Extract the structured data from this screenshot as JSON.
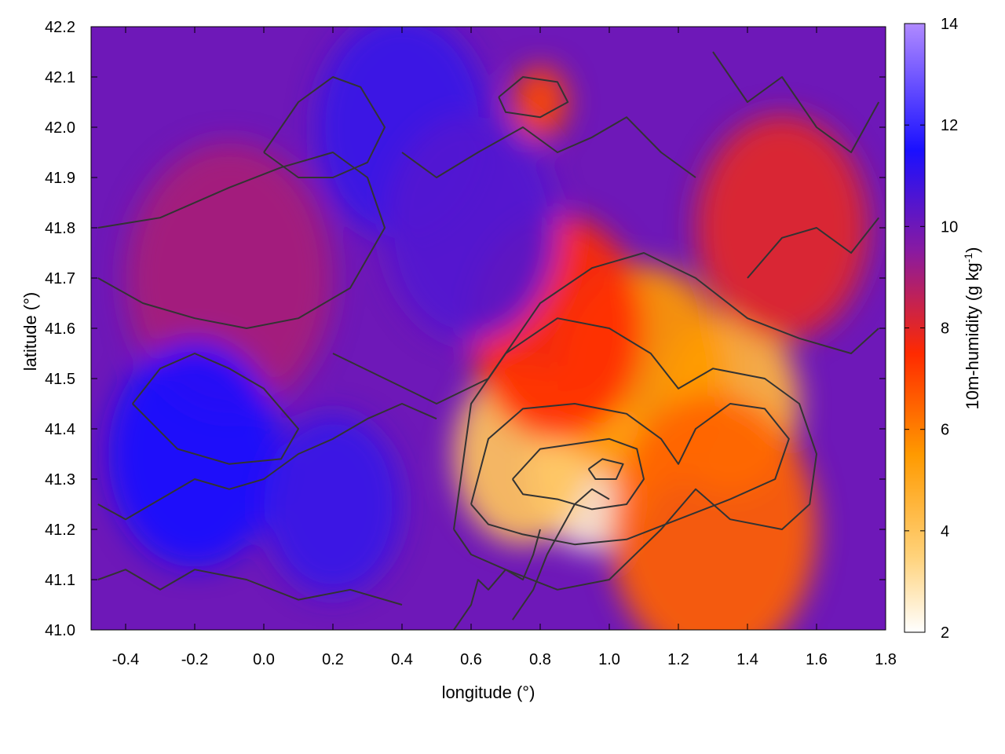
{
  "chart_data": {
    "type": "heatmap",
    "title": "",
    "xlabel": "longitude (°)",
    "ylabel": "latitude (°)",
    "xlim": [
      -0.5,
      1.8
    ],
    "ylim": [
      41.0,
      42.2
    ],
    "xticks": [
      -0.4,
      -0.2,
      0.0,
      0.2,
      0.4,
      0.6,
      0.8,
      1.0,
      1.2,
      1.4,
      1.6,
      1.8
    ],
    "xtick_labels": [
      "-0.4",
      "-0.2",
      "0.0",
      "0.2",
      "0.4",
      "0.6",
      "0.8",
      "1.0",
      "1.2",
      "1.4",
      "1.6",
      "1.8"
    ],
    "yticks": [
      41.0,
      41.1,
      41.2,
      41.3,
      41.4,
      41.5,
      41.6,
      41.7,
      41.8,
      41.9,
      42.0,
      42.1,
      42.2
    ],
    "ytick_labels": [
      "41.0",
      "41.1",
      "41.2",
      "41.3",
      "41.4",
      "41.5",
      "41.6",
      "41.7",
      "41.8",
      "41.9",
      "42.0",
      "42.1",
      "42.2"
    ],
    "colorbar": {
      "label_main": "10m-humidity (g kg",
      "label_sup": "-1",
      "label_close": ")",
      "range": [
        2,
        14
      ],
      "ticks": [
        2,
        4,
        6,
        8,
        10,
        12,
        14
      ],
      "tick_labels": [
        "2",
        "4",
        "6",
        "8",
        "10",
        "12",
        "14"
      ],
      "colors": [
        {
          "value": 2,
          "color": "#ffffff"
        },
        {
          "value": 3.5,
          "color": "#ffd27a"
        },
        {
          "value": 5.5,
          "color": "#ff9a00"
        },
        {
          "value": 7.5,
          "color": "#ff2a00"
        },
        {
          "value": 9.5,
          "color": "#8a1aa0"
        },
        {
          "value": 11.5,
          "color": "#1a10ff"
        },
        {
          "value": 14,
          "color": "#b08aff"
        }
      ]
    },
    "humidity_features": [
      {
        "lon": 0.95,
        "lat": 41.32,
        "value": 2.5,
        "spread": 0.18
      },
      {
        "lon": 0.75,
        "lat": 41.35,
        "value": 4.0,
        "spread": 0.2
      },
      {
        "lon": 1.35,
        "lat": 41.45,
        "value": 4.5,
        "spread": 0.2
      },
      {
        "lon": 1.1,
        "lat": 41.5,
        "value": 5.5,
        "spread": 0.25
      },
      {
        "lon": 1.3,
        "lat": 41.2,
        "value": 6.5,
        "spread": 0.3
      },
      {
        "lon": 0.85,
        "lat": 41.6,
        "value": 7.5,
        "spread": 0.25
      },
      {
        "lon": 1.5,
        "lat": 41.8,
        "value": 8.0,
        "spread": 0.25
      },
      {
        "lon": 0.8,
        "lat": 42.05,
        "value": 7.0,
        "spread": 0.08
      },
      {
        "lon": -0.1,
        "lat": 41.7,
        "value": 9.0,
        "spread": 0.3
      },
      {
        "lon": -0.2,
        "lat": 41.35,
        "value": 11.5,
        "spread": 0.25
      },
      {
        "lon": 0.2,
        "lat": 41.25,
        "value": 11.0,
        "spread": 0.2
      },
      {
        "lon": 0.4,
        "lat": 42.0,
        "value": 11.0,
        "spread": 0.25
      },
      {
        "lon": 0.6,
        "lat": 41.8,
        "value": 10.5,
        "spread": 0.25
      }
    ],
    "contour_lines": [
      {
        "lon": [
          0.72,
          0.8,
          0.9,
          1.0,
          1.08,
          1.1,
          1.05,
          0.95,
          0.85,
          0.75,
          0.72
        ],
        "lat": [
          41.3,
          41.36,
          41.37,
          41.38,
          41.36,
          41.3,
          41.25,
          41.24,
          41.26,
          41.27,
          41.3
        ]
      },
      {
        "lon": [
          0.94,
          0.98,
          1.04,
          1.02,
          0.96,
          0.94
        ],
        "lat": [
          41.32,
          41.34,
          41.33,
          41.3,
          41.3,
          41.32
        ]
      },
      {
        "lon": [
          0.6,
          0.65,
          0.75,
          0.9,
          1.05,
          1.15,
          1.2,
          1.25,
          1.35,
          1.45,
          1.52,
          1.48,
          1.35,
          1.2,
          1.05,
          0.9,
          0.75,
          0.65,
          0.6
        ],
        "lat": [
          41.25,
          41.38,
          41.44,
          41.45,
          41.43,
          41.38,
          41.33,
          41.4,
          41.45,
          41.44,
          41.38,
          41.3,
          41.26,
          41.22,
          41.18,
          41.17,
          41.19,
          41.21,
          41.25
        ]
      },
      {
        "lon": [
          0.55,
          0.6,
          0.7,
          0.85,
          1.0,
          1.12,
          1.2,
          1.3,
          1.45,
          1.55,
          1.6,
          1.58,
          1.5,
          1.35,
          1.25,
          1.15,
          1.0,
          0.85,
          0.7,
          0.6,
          0.55
        ],
        "lat": [
          41.2,
          41.45,
          41.55,
          41.62,
          41.6,
          41.55,
          41.48,
          41.52,
          41.5,
          41.45,
          41.35,
          41.25,
          41.2,
          41.22,
          41.28,
          41.2,
          41.1,
          41.08,
          41.12,
          41.15,
          41.2
        ]
      },
      {
        "lon": [
          0.2,
          0.35,
          0.5,
          0.65,
          0.8,
          0.95,
          1.1,
          1.25,
          1.4,
          1.55,
          1.7,
          1.78
        ],
        "lat": [
          41.55,
          41.5,
          41.45,
          41.5,
          41.65,
          41.72,
          41.75,
          41.7,
          41.62,
          41.58,
          41.55,
          41.6
        ]
      },
      {
        "lon": [
          -0.48,
          -0.4,
          -0.3,
          -0.2,
          -0.1,
          0.0,
          0.1,
          0.2,
          0.3,
          0.4,
          0.5
        ],
        "lat": [
          41.25,
          41.22,
          41.26,
          41.3,
          41.28,
          41.3,
          41.35,
          41.38,
          41.42,
          41.45,
          41.42
        ]
      },
      {
        "lon": [
          -0.38,
          -0.3,
          -0.2,
          -0.1,
          0.0,
          0.1,
          0.05,
          -0.1,
          -0.25,
          -0.38
        ],
        "lat": [
          41.45,
          41.52,
          41.55,
          41.52,
          41.48,
          41.4,
          41.34,
          41.33,
          41.36,
          41.45
        ]
      },
      {
        "lon": [
          -0.48,
          -0.35,
          -0.2,
          -0.05,
          0.1,
          0.25,
          0.35,
          0.3,
          0.2,
          0.05,
          -0.1,
          -0.3,
          -0.48
        ],
        "lat": [
          41.7,
          41.65,
          41.62,
          41.6,
          41.62,
          41.68,
          41.8,
          41.9,
          41.95,
          41.92,
          41.88,
          41.82,
          41.8
        ]
      },
      {
        "lon": [
          0.0,
          0.1,
          0.2,
          0.28,
          0.35,
          0.3,
          0.2,
          0.1,
          0.0
        ],
        "lat": [
          41.95,
          42.05,
          42.1,
          42.08,
          42.0,
          41.93,
          41.9,
          41.9,
          41.95
        ]
      },
      {
        "lon": [
          0.4,
          0.5,
          0.62,
          0.75,
          0.85,
          0.95,
          1.05,
          1.15,
          1.25
        ],
        "lat": [
          41.95,
          41.9,
          41.95,
          42.0,
          41.95,
          41.98,
          42.02,
          41.95,
          41.9
        ]
      },
      {
        "lon": [
          0.68,
          0.75,
          0.85,
          0.88,
          0.8,
          0.7,
          0.68
        ],
        "lat": [
          42.06,
          42.1,
          42.09,
          42.05,
          42.02,
          42.03,
          42.06
        ]
      },
      {
        "lon": [
          1.3,
          1.4,
          1.5,
          1.6,
          1.7,
          1.78
        ],
        "lat": [
          42.15,
          42.05,
          42.1,
          42.0,
          41.95,
          42.05
        ]
      },
      {
        "lon": [
          0.55,
          0.6,
          0.62,
          0.65,
          0.7,
          0.75,
          0.78,
          0.8
        ],
        "lat": [
          41.0,
          41.05,
          41.1,
          41.08,
          41.12,
          41.1,
          41.15,
          41.2
        ]
      },
      {
        "lon": [
          0.72,
          0.78,
          0.82,
          0.86,
          0.9,
          0.95,
          1.0
        ],
        "lat": [
          41.02,
          41.08,
          41.15,
          41.2,
          41.25,
          41.28,
          41.26
        ]
      },
      {
        "lon": [
          1.4,
          1.5,
          1.6,
          1.7,
          1.78
        ],
        "lat": [
          41.7,
          41.78,
          41.8,
          41.75,
          41.82
        ]
      },
      {
        "lon": [
          -0.48,
          -0.4,
          -0.3,
          -0.2,
          -0.05,
          0.1,
          0.25,
          0.4
        ],
        "lat": [
          41.1,
          41.12,
          41.08,
          41.12,
          41.1,
          41.06,
          41.08,
          41.05
        ]
      }
    ]
  }
}
